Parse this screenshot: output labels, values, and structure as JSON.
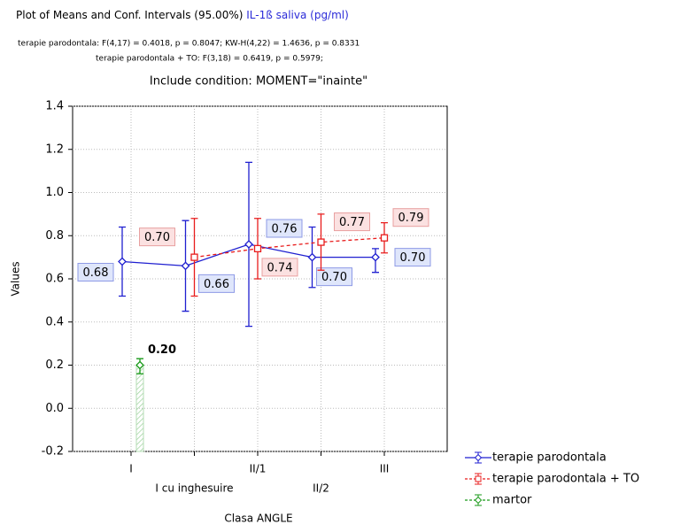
{
  "chart_data": {
    "type": "line",
    "title": "Plot of Means and Conf. Intervals (95.00%)",
    "variable": "IL-1ß saliva (pg/ml)",
    "subtitle_lines": [
      "terapie parodontala: F(4,17) = 0.4018, p = 0.8047; KW-H(4,22) = 1.4636, p =   0.8331",
      "terapie parodontala + TO:  F(3,18) = 0.6419, p = 0.5979;"
    ],
    "condition": "Include condition: MOMENT=\"inainte\"",
    "x_label": "Clasa ANGLE",
    "y_label": "Values",
    "categories": [
      "I",
      "I cu inghesuire",
      "II/1",
      "II/2",
      "III"
    ],
    "ylim": [
      -0.2,
      1.4
    ],
    "yticks": [
      1.4,
      1.2,
      {
        "value": 1,
        "label": "1.0"
      },
      0.8,
      0.6,
      0.4,
      0.2,
      {
        "value": 0,
        "label": "0.0"
      },
      -0.2
    ],
    "grid": true,
    "series": [
      {
        "name": "terapie parodontala",
        "color": "#1f1fd0",
        "dash": false,
        "values": [
          0.68,
          0.66,
          0.76,
          0.7,
          0.7
        ],
        "value_labels": [
          "0.68",
          "0.66",
          "0.76",
          "0.70",
          "0.70"
        ],
        "ci_low": [
          0.52,
          0.45,
          0.38,
          0.56,
          0.63
        ],
        "ci_high": [
          0.84,
          0.87,
          1.14,
          0.84,
          0.74
        ]
      },
      {
        "name": "terapie parodontala + TO",
        "color": "#e81c1c",
        "dash": true,
        "values": [
          null,
          0.7,
          0.74,
          0.77,
          0.79
        ],
        "value_labels": [
          null,
          "0.70",
          "0.74",
          "0.77",
          "0.79"
        ],
        "ci_low": [
          null,
          0.52,
          0.6,
          0.64,
          0.72
        ],
        "ci_high": [
          null,
          0.88,
          0.88,
          0.9,
          0.86
        ]
      },
      {
        "name": "martor",
        "color": "#1a9a1a",
        "dash": true,
        "values": [
          0.2,
          null,
          null,
          null,
          null
        ],
        "value_labels": [
          "0.20",
          null,
          null,
          null,
          null
        ],
        "ci_low": [
          0.16,
          null,
          null,
          null,
          null
        ],
        "ci_high": [
          0.23,
          null,
          null,
          null,
          null
        ]
      }
    ]
  }
}
